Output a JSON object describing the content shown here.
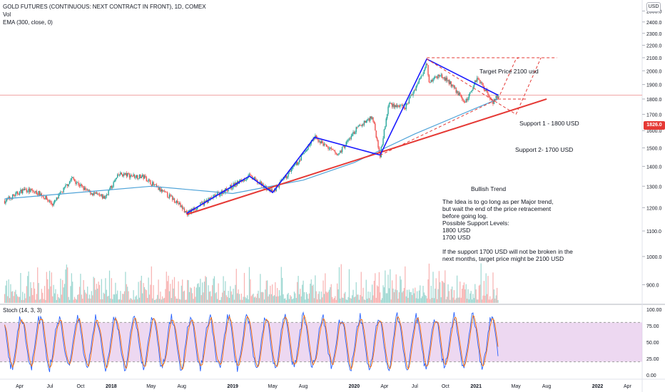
{
  "header": {
    "symbol_title": "GOLD FUTURES (CONTINUOUS: NEXT CONTRACT IN FRONT), 1D, COMEX",
    "vol_label": "Vol",
    "ema_label": "EMA (300, close, 0)",
    "stoch_label": "Stoch (14, 3, 3)",
    "currency": "USD"
  },
  "price_axis": {
    "ticks": [
      "2500.0",
      "2400.0",
      "2300.0",
      "2200.0",
      "2100.0",
      "2000.0",
      "1900.0",
      "1800.0",
      "1700.0",
      "1600.0",
      "1500.0",
      "1400.0",
      "1300.0",
      "1200.0",
      "1100.0",
      "1000.0",
      "900.0"
    ],
    "current_price": "1826.0"
  },
  "stoch_axis": {
    "ticks": [
      "100.00",
      "75.00",
      "50.00",
      "25.00",
      "0.00"
    ]
  },
  "time_axis": {
    "ticks": [
      "Apr",
      "Jul",
      "Oct",
      "2018",
      "May",
      "Aug",
      "2019",
      "May",
      "Aug",
      "2020",
      "Apr",
      "Jul",
      "Oct",
      "2021",
      "May",
      "Aug",
      "2022",
      "Apr"
    ]
  },
  "annotations": {
    "target": "Target Price 2100 usd",
    "support1": "Support 1 - 1800 USD",
    "support2": "Support 2- 1700 USD",
    "trend": "Bullish Trend",
    "idea_lines": [
      "The Idea is to go long as per Major trend,",
      "but wait the end of the price retracement",
      "before going log.",
      "Possible Support Levels:",
      "1800 USD",
      "1700 USD",
      "",
      "If the support 1700 USD will not be broken in the",
      "next months, target price might be 2100 USD"
    ]
  },
  "colors": {
    "up": "#26a69a",
    "down": "#ef5350",
    "trend_line": "#e53935",
    "pattern_line": "#1a1aff",
    "ema": "#4fa3d8",
    "stoch_k": "#2962ff",
    "stoch_d": "#ff6d00",
    "stoch_band": "#e1bee7"
  },
  "chart_data": {
    "type": "candlestick",
    "title": "GOLD FUTURES (CONTINUOUS: NEXT CONTRACT IN FRONT), 1D, COMEX",
    "y_scale": "log",
    "ylim": [
      850,
      2550
    ],
    "x_range": [
      "2017-02",
      "2022-05"
    ],
    "price_path": [
      {
        "date": "2017-02-15",
        "close": 1230
      },
      {
        "date": "2017-04-15",
        "close": 1285
      },
      {
        "date": "2017-06-01",
        "close": 1265
      },
      {
        "date": "2017-07-10",
        "close": 1215
      },
      {
        "date": "2017-09-05",
        "close": 1340
      },
      {
        "date": "2017-10-20",
        "close": 1275
      },
      {
        "date": "2017-12-12",
        "close": 1245
      },
      {
        "date": "2018-01-25",
        "close": 1360
      },
      {
        "date": "2018-04-10",
        "close": 1345
      },
      {
        "date": "2018-05-20",
        "close": 1290
      },
      {
        "date": "2018-07-15",
        "close": 1230
      },
      {
        "date": "2018-08-16",
        "close": 1175
      },
      {
        "date": "2018-10-20",
        "close": 1235
      },
      {
        "date": "2019-02-20",
        "close": 1350
      },
      {
        "date": "2019-05-01",
        "close": 1270
      },
      {
        "date": "2019-07-15",
        "close": 1420
      },
      {
        "date": "2019-09-04",
        "close": 1560
      },
      {
        "date": "2019-11-12",
        "close": 1460
      },
      {
        "date": "2020-01-08",
        "close": 1610
      },
      {
        "date": "2020-02-24",
        "close": 1690
      },
      {
        "date": "2020-03-19",
        "close": 1460
      },
      {
        "date": "2020-04-14",
        "close": 1770
      },
      {
        "date": "2020-06-01",
        "close": 1740
      },
      {
        "date": "2020-07-27",
        "close": 1990
      },
      {
        "date": "2020-08-06",
        "close": 2090
      },
      {
        "date": "2020-08-12",
        "close": 1920
      },
      {
        "date": "2020-09-15",
        "close": 1970
      },
      {
        "date": "2020-10-15",
        "close": 1910
      },
      {
        "date": "2020-11-30",
        "close": 1775
      },
      {
        "date": "2021-01-05",
        "close": 1955
      },
      {
        "date": "2021-02-20",
        "close": 1780
      },
      {
        "date": "2021-03-08",
        "close": 1826
      }
    ],
    "ema_300": [
      {
        "date": "2017-02-15",
        "value": 1240
      },
      {
        "date": "2018-05-01",
        "value": 1300
      },
      {
        "date": "2019-01-01",
        "value": 1265
      },
      {
        "date": "2019-08-01",
        "value": 1330
      },
      {
        "date": "2020-01-01",
        "value": 1420
      },
      {
        "date": "2020-07-01",
        "value": 1580
      },
      {
        "date": "2021-01-01",
        "value": 1740
      },
      {
        "date": "2021-03-08",
        "value": 1800
      }
    ],
    "pattern": [
      {
        "date": "2018-08-16",
        "price": 1175
      },
      {
        "date": "2019-02-20",
        "price": 1350
      },
      {
        "date": "2019-05-01",
        "price": 1270
      },
      {
        "date": "2019-09-04",
        "price": 1560
      },
      {
        "date": "2020-03-19",
        "price": 1460
      },
      {
        "date": "2020-08-06",
        "price": 2090
      },
      {
        "date": "2021-03-08",
        "price": 1826
      }
    ],
    "trend_line": [
      {
        "date": "2018-08-16",
        "price": 1170
      },
      {
        "date": "2021-08-01",
        "price": 1800
      }
    ],
    "levels": {
      "target": 2100,
      "support1": 1800,
      "support2": 1700
    },
    "stochastic": {
      "period": [
        14,
        3,
        3
      ],
      "upper_band": 80,
      "lower_band": 20,
      "ylim": [
        0,
        100
      ]
    }
  }
}
